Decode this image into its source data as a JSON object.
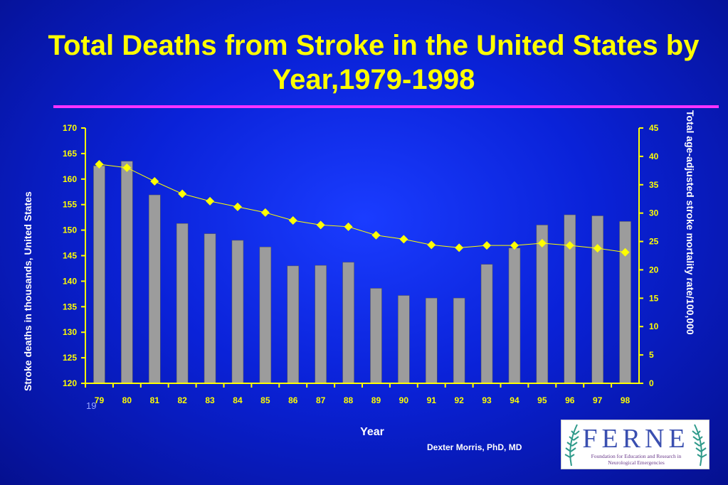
{
  "slide": {
    "title": "Total Deaths from Stroke in the United States by Year,1979-1998",
    "slide_number": "19",
    "author": "Dexter Morris, PhD, MD"
  },
  "logo": {
    "word": "FERNE",
    "subtitle": "Foundation for Education and Research in Neurological Emergencies"
  },
  "colors": {
    "background": "#0a22d8",
    "title": "#ffff00",
    "rule": "#ff33ff",
    "bars": "#9c9c9c",
    "line": "#ffff00",
    "ticks": "#ffff00"
  },
  "chart_data": {
    "type": "bar",
    "categories": [
      "79",
      "80",
      "81",
      "82",
      "83",
      "84",
      "85",
      "86",
      "87",
      "88",
      "89",
      "90",
      "91",
      "92",
      "93",
      "94",
      "95",
      "96",
      "97",
      "98"
    ],
    "xlabel": "Year",
    "ylabel": "Stroke deaths in thousands, United States",
    "ylim": [
      120,
      170
    ],
    "yticks": [
      120,
      125,
      130,
      135,
      140,
      145,
      150,
      155,
      160,
      165,
      170
    ],
    "y2label": "Total age-adjusted stroke mortality rate/100,000",
    "y2lim": [
      0,
      45
    ],
    "y2ticks": [
      0,
      5,
      10,
      15,
      20,
      25,
      30,
      35,
      40,
      45
    ],
    "grid": false,
    "series": [
      {
        "type": "bar",
        "axis": "left",
        "values": [
          162.6,
          163.5,
          156.9,
          151.3,
          149.3,
          148.0,
          146.7,
          143.0,
          143.1,
          143.7,
          138.6,
          137.2,
          136.7,
          136.7,
          143.3,
          146.5,
          151.0,
          153.0,
          152.8,
          151.7
        ]
      },
      {
        "type": "line",
        "axis": "right",
        "marker": "diamond",
        "values": [
          38.6,
          38.0,
          35.6,
          33.4,
          32.1,
          31.1,
          30.1,
          28.7,
          27.9,
          27.6,
          26.1,
          25.4,
          24.4,
          23.9,
          24.3,
          24.3,
          24.7,
          24.3,
          23.8,
          23.1
        ]
      }
    ]
  }
}
